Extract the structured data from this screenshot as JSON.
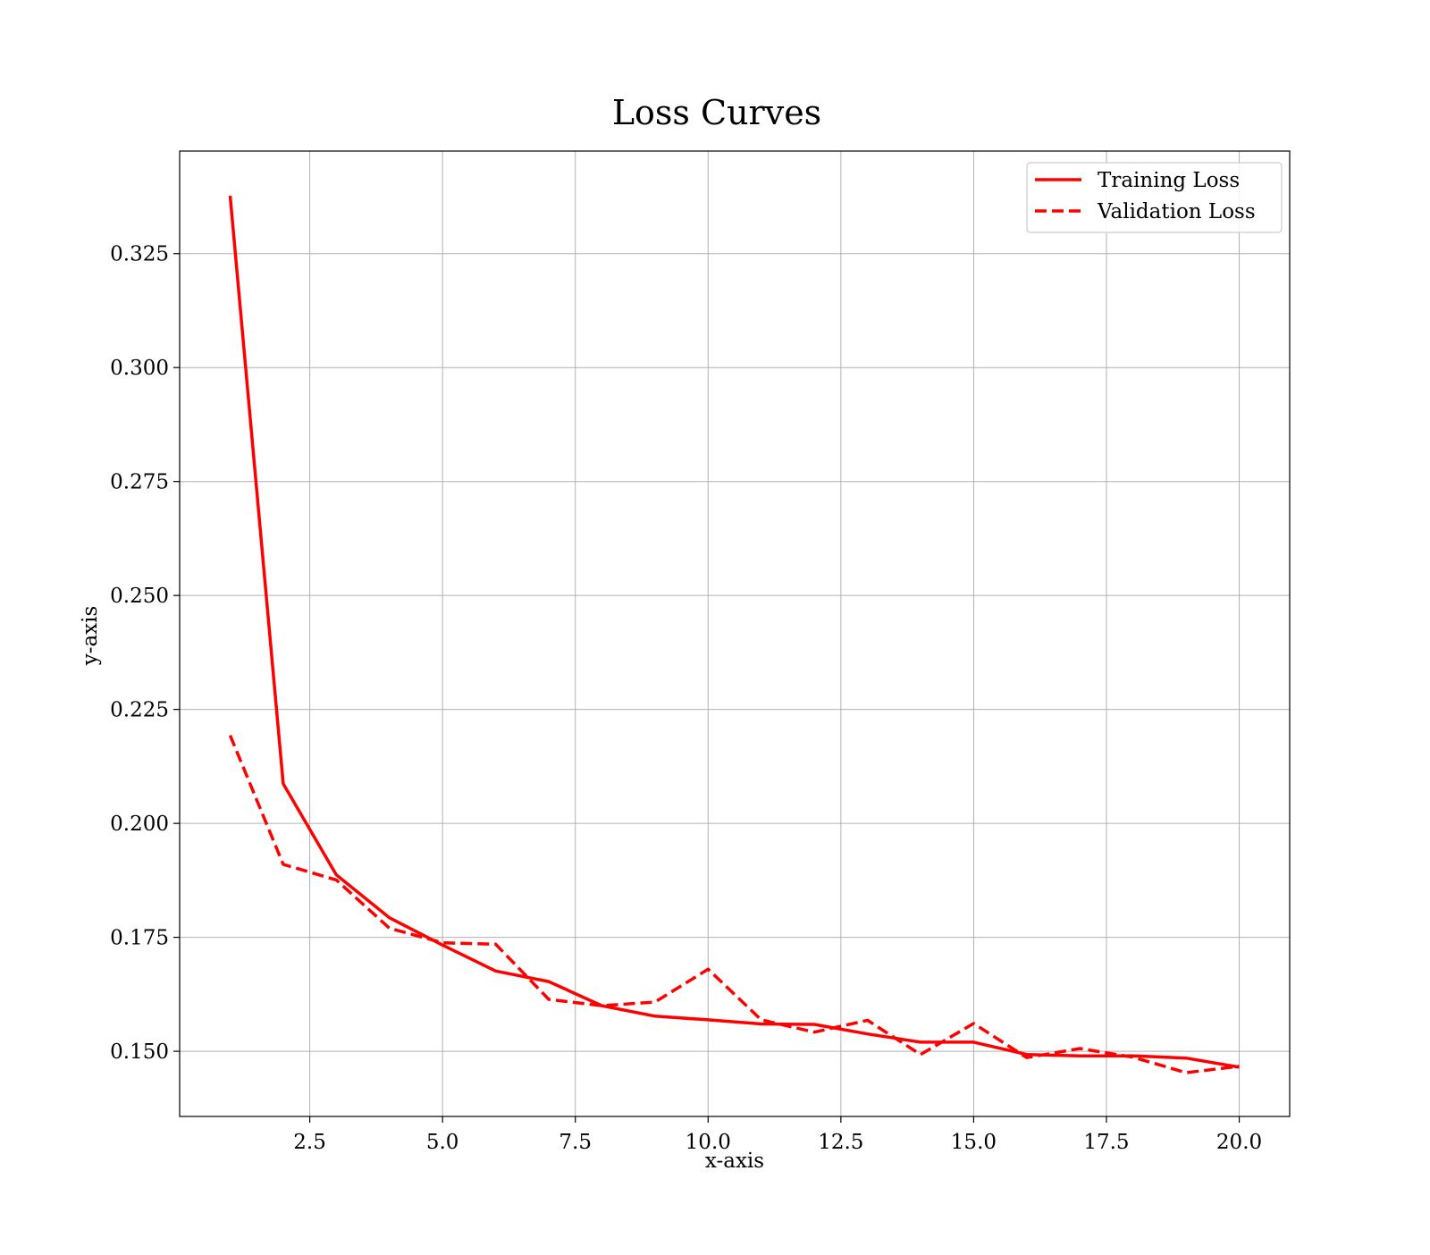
{
  "chart_data": {
    "type": "line",
    "title": "Loss Curves",
    "xlabel": "x-axis",
    "ylabel": "y-axis",
    "xlim": [
      0.05,
      20.95
    ],
    "ylim": [
      0.1357,
      0.3475
    ],
    "grid": true,
    "legend_position": "top-right",
    "x_ticks": [
      2.5,
      5.0,
      7.5,
      10.0,
      12.5,
      15.0,
      17.5,
      20.0
    ],
    "x_tick_labels": [
      "2.5",
      "5.0",
      "7.5",
      "10.0",
      "12.5",
      "15.0",
      "17.5",
      "20.0"
    ],
    "y_ticks": [
      0.15,
      0.175,
      0.2,
      0.225,
      0.25,
      0.275,
      0.3,
      0.325
    ],
    "y_tick_labels": [
      "0.150",
      "0.175",
      "0.200",
      "0.225",
      "0.250",
      "0.275",
      "0.300",
      "0.325"
    ],
    "x": [
      1,
      2,
      3,
      4,
      5,
      6,
      7,
      8,
      9,
      10,
      11,
      12,
      13,
      14,
      15,
      16,
      17,
      18,
      19,
      20
    ],
    "series": [
      {
        "name": "Training Loss",
        "style": "solid",
        "color": "#ff0000",
        "values": [
          0.3377,
          0.2087,
          0.1887,
          0.1793,
          0.1733,
          0.1676,
          0.1653,
          0.16,
          0.1577,
          0.1569,
          0.156,
          0.1559,
          0.1538,
          0.152,
          0.152,
          0.1493,
          0.149,
          0.149,
          0.1485,
          0.1465
        ]
      },
      {
        "name": "Validation Loss",
        "style": "dashed",
        "color": "#ff0000",
        "values": [
          0.2193,
          0.191,
          0.1876,
          0.177,
          0.1738,
          0.1735,
          0.1614,
          0.16,
          0.1608,
          0.168,
          0.1569,
          0.1542,
          0.1568,
          0.1493,
          0.1561,
          0.1486,
          0.1506,
          0.1487,
          0.1453,
          0.1467
        ]
      }
    ]
  }
}
